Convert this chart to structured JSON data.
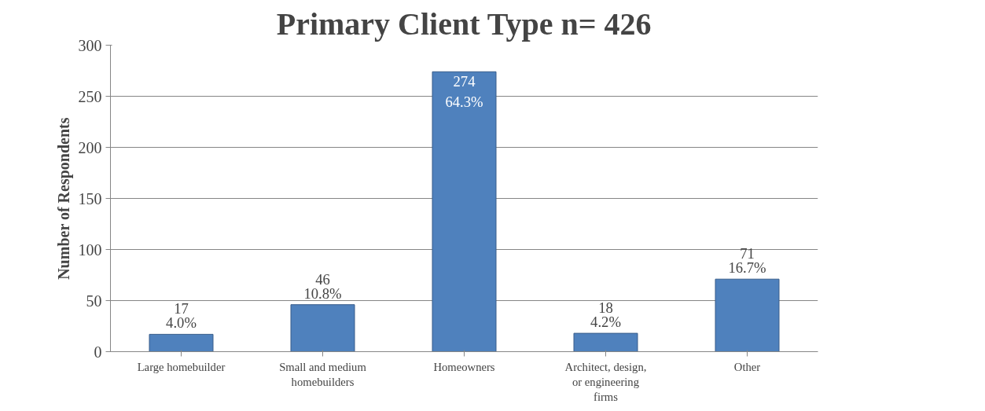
{
  "chart_data": {
    "type": "bar",
    "title": "Primary Client Type n= 426",
    "ylabel": "Number of Respondents",
    "categories": [
      "Large homebuilder",
      "Small and medium homebuilders",
      "Homeowners",
      "Architect, design, or engineering firms",
      "Other"
    ],
    "values": [
      17,
      46,
      274,
      18,
      71
    ],
    "value_labels": [
      "17\n4.0%",
      "46\n10.8%",
      "274\n64.3%",
      "18\n4.2%",
      "71\n16.7%"
    ],
    "color": "#4f81bd",
    "ylim": [
      0,
      300
    ],
    "yticks": [
      0,
      50,
      100,
      150,
      200,
      250,
      300
    ],
    "grid": "y"
  }
}
